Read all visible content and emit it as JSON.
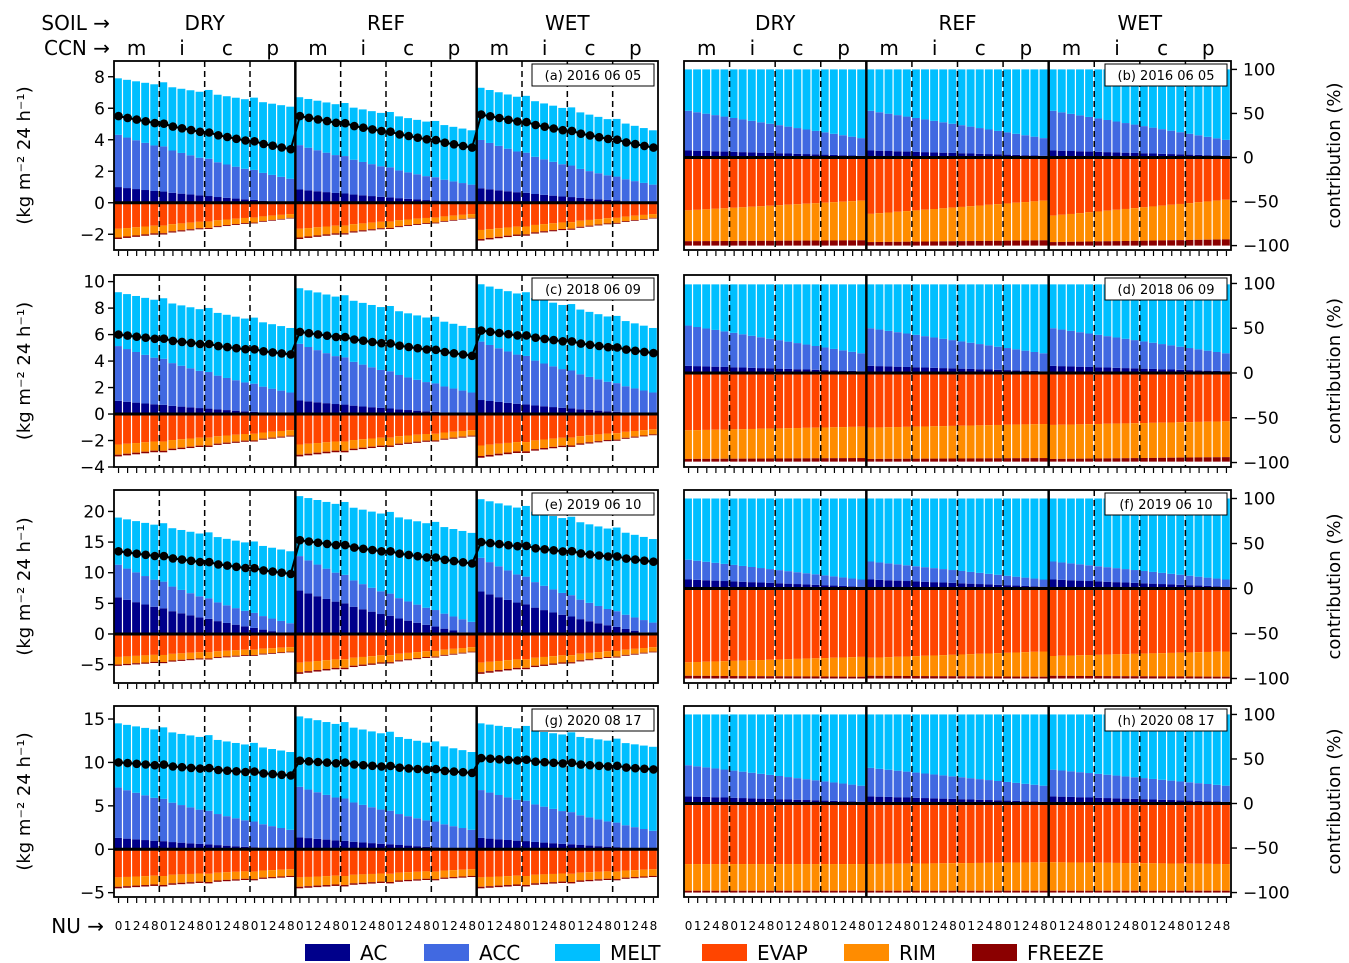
{
  "header": {
    "soil_label": "SOIL",
    "ccn_label": "CCN",
    "nu_label": "NU",
    "arrow": "→",
    "soil_groups": [
      "DRY",
      "REF",
      "WET"
    ],
    "ccn_groups": [
      "m",
      "i",
      "c",
      "p"
    ],
    "nu_ticks": [
      "0",
      "1",
      "2",
      "4",
      "8"
    ]
  },
  "axes": {
    "left_ylabel": "(kg m⁻² 24 h⁻¹)",
    "right_ylabel": "contribution (%)"
  },
  "legend": [
    {
      "key": "AC",
      "label": "AC",
      "color": "#00008B"
    },
    {
      "key": "ACC",
      "label": "ACC",
      "color": "#4169E1"
    },
    {
      "key": "MELT",
      "label": "MELT",
      "color": "#00BFFF"
    },
    {
      "key": "EVAP",
      "label": "EVAP",
      "color": "#FF4500"
    },
    {
      "key": "RIM",
      "label": "RIM",
      "color": "#FF8C00"
    },
    {
      "key": "FREEZE",
      "label": "FREEZE",
      "color": "#8B0000"
    }
  ],
  "chart_data": [
    {
      "type": "bar",
      "panel": "(a) 2016 06 05",
      "ylim": [
        -3,
        9
      ],
      "yticks": [
        -2,
        0,
        2,
        4,
        6,
        8
      ],
      "total_gain": [
        [
          7.9,
          6.1
        ],
        [
          6.7,
          4.6
        ],
        [
          7.3,
          4.6
        ]
      ],
      "ac_ratio": 0.14,
      "acc_fraction": [
        [
          0.42,
          0.25
        ],
        [
          0.42,
          0.25
        ],
        [
          0.42,
          0.25
        ]
      ],
      "total_loss": [
        [
          -2.3,
          -1.0
        ],
        [
          -2.3,
          -1.0
        ],
        [
          -2.4,
          -1.0
        ]
      ],
      "net_line": [
        [
          5.5,
          3.4
        ],
        [
          5.5,
          3.5
        ],
        [
          5.6,
          3.5
        ]
      ],
      "pct_gain": [
        [
          100,
          100
        ],
        [
          100,
          100
        ],
        [
          100,
          100
        ]
      ],
      "pct_ac": [
        [
          8,
          2
        ],
        [
          8,
          2
        ],
        [
          8,
          2
        ]
      ],
      "pct_acc": [
        [
          45,
          20
        ],
        [
          45,
          20
        ],
        [
          45,
          18
        ]
      ],
      "pct_rim": [
        [
          35,
          45
        ],
        [
          32,
          45
        ],
        [
          30,
          45
        ]
      ],
      "pct_freeze": [
        [
          5,
          6
        ],
        [
          4,
          6
        ],
        [
          4,
          7
        ]
      ]
    },
    {
      "type": "bar",
      "panel": "(c) 2018 06 09",
      "ylim": [
        -4,
        10.5
      ],
      "yticks": [
        -4,
        -2,
        0,
        2,
        4,
        6,
        8,
        10
      ],
      "total_gain": [
        [
          9.2,
          6.5
        ],
        [
          9.5,
          6.5
        ],
        [
          9.8,
          6.5
        ]
      ],
      "ac_ratio": 0.12,
      "acc_fraction": [
        [
          0.45,
          0.25
        ],
        [
          0.45,
          0.25
        ],
        [
          0.45,
          0.25
        ]
      ],
      "total_loss": [
        [
          -3.2,
          -1.7
        ],
        [
          -3.2,
          -1.7
        ],
        [
          -3.3,
          -1.6
        ]
      ],
      "net_line": [
        [
          6.0,
          4.5
        ],
        [
          6.2,
          4.4
        ],
        [
          6.3,
          4.6
        ]
      ],
      "pct_gain": [
        [
          99,
          99
        ],
        [
          99,
          99
        ],
        [
          99,
          99
        ]
      ],
      "pct_ac": [
        [
          8,
          2
        ],
        [
          8,
          2
        ],
        [
          8,
          2
        ]
      ],
      "pct_acc": [
        [
          45,
          20
        ],
        [
          42,
          20
        ],
        [
          42,
          20
        ]
      ],
      "pct_rim": [
        [
          32,
          35
        ],
        [
          35,
          38
        ],
        [
          38,
          40
        ]
      ],
      "pct_freeze": [
        [
          3,
          4
        ],
        [
          3,
          4
        ],
        [
          3,
          5
        ]
      ]
    },
    {
      "type": "bar",
      "panel": "(e) 2019 06 10",
      "ylim": [
        -8,
        23.5
      ],
      "yticks": [
        -5,
        0,
        5,
        10,
        15,
        20
      ],
      "total_gain": [
        [
          19.0,
          13.5
        ],
        [
          22.5,
          16.5
        ],
        [
          22.0,
          15.5
        ]
      ],
      "ac_ratio": 0.35,
      "acc_fraction": [
        [
          0.28,
          0.13
        ],
        [
          0.25,
          0.12
        ],
        [
          0.25,
          0.12
        ]
      ],
      "total_loss": [
        [
          -5.2,
          -3.0
        ],
        [
          -6.5,
          -3.0
        ],
        [
          -6.5,
          -3.0
        ]
      ],
      "net_line": [
        [
          13.5,
          9.8
        ],
        [
          15.3,
          11.5
        ],
        [
          15.0,
          11.8
        ]
      ],
      "pct_gain": [
        [
          100,
          100
        ],
        [
          100,
          100
        ],
        [
          100,
          100
        ]
      ],
      "pct_ac": [
        [
          10,
          2
        ],
        [
          10,
          2
        ],
        [
          10,
          2
        ]
      ],
      "pct_acc": [
        [
          22,
          8
        ],
        [
          20,
          8
        ],
        [
          20,
          8
        ]
      ],
      "pct_rim": [
        [
          15,
          22
        ],
        [
          20,
          28
        ],
        [
          22,
          28
        ]
      ],
      "pct_freeze": [
        [
          3,
          2
        ],
        [
          3,
          2
        ],
        [
          3,
          2
        ]
      ]
    },
    {
      "type": "bar",
      "panel": "(g) 2020 08 17",
      "ylim": [
        -5.5,
        16.5
      ],
      "yticks": [
        -5,
        0,
        5,
        10,
        15
      ],
      "total_gain": [
        [
          14.5,
          11.2
        ],
        [
          15.3,
          11.2
        ],
        [
          14.5,
          11.8
        ]
      ],
      "ac_ratio": 0.1,
      "acc_fraction": [
        [
          0.4,
          0.2
        ],
        [
          0.38,
          0.2
        ],
        [
          0.38,
          0.18
        ]
      ],
      "total_loss": [
        [
          -4.5,
          -3.2
        ],
        [
          -4.5,
          -3.2
        ],
        [
          -4.5,
          -3.2
        ]
      ],
      "net_line": [
        [
          10.0,
          8.5
        ],
        [
          10.2,
          8.8
        ],
        [
          10.5,
          9.2
        ]
      ],
      "pct_gain": [
        [
          100,
          100
        ],
        [
          100,
          100
        ],
        [
          100,
          100
        ]
      ],
      "pct_ac": [
        [
          8,
          2
        ],
        [
          8,
          2
        ],
        [
          8,
          2
        ]
      ],
      "pct_acc": [
        [
          35,
          18
        ],
        [
          32,
          18
        ],
        [
          30,
          18
        ]
      ],
      "pct_rim": [
        [
          30,
          30
        ],
        [
          30,
          32
        ],
        [
          32,
          30
        ]
      ],
      "pct_freeze": [
        [
          2,
          2
        ],
        [
          2,
          2
        ],
        [
          2,
          2
        ]
      ]
    }
  ],
  "right_panels": [
    "(b) 2016 06 05",
    "(d) 2018 06 09",
    "(f) 2019 06 10",
    "(h) 2020 08 17"
  ],
  "right_yticks": [
    -100,
    -50,
    0,
    50,
    100
  ]
}
